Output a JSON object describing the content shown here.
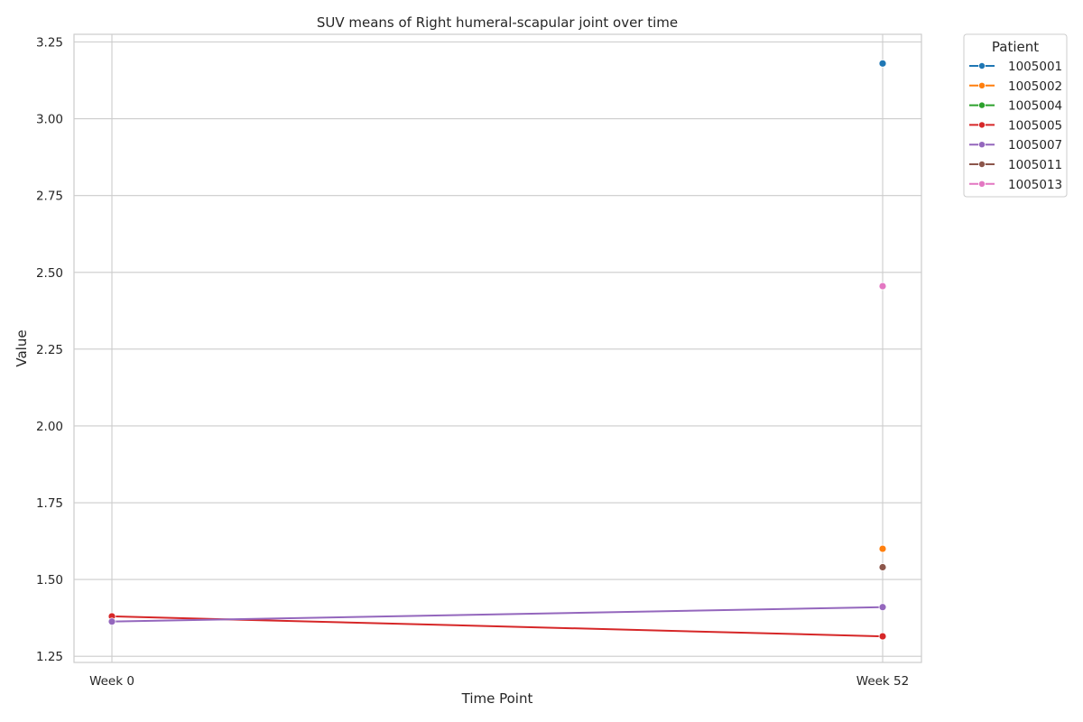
{
  "chart_data": {
    "type": "line",
    "title": "SUV means of Right humeral-scapular joint over time",
    "xlabel": "Time Point",
    "ylabel": "Value",
    "categories": [
      "Week 0",
      "Week 52"
    ],
    "ylim": [
      1.23,
      3.275
    ],
    "yticks": [
      1.25,
      1.5,
      1.75,
      2.0,
      2.25,
      2.5,
      2.75,
      3.0,
      3.25
    ],
    "ytick_labels": [
      "1.25",
      "1.50",
      "1.75",
      "2.00",
      "2.25",
      "2.50",
      "2.75",
      "3.00",
      "3.25"
    ],
    "grid": true,
    "legend": {
      "title": "Patient",
      "placement": "outside-top-right"
    },
    "series": [
      {
        "name": "1005001",
        "color": "#1f77b4",
        "values": [
          null,
          3.18
        ]
      },
      {
        "name": "1005002",
        "color": "#ff7f0e",
        "values": [
          null,
          1.6
        ]
      },
      {
        "name": "1005004",
        "color": "#2ca02c",
        "values": [
          null,
          null
        ]
      },
      {
        "name": "1005005",
        "color": "#d62728",
        "values": [
          1.38,
          1.315
        ]
      },
      {
        "name": "1005007",
        "color": "#9467bd",
        "values": [
          1.363,
          1.41
        ]
      },
      {
        "name": "1005011",
        "color": "#8c564b",
        "values": [
          null,
          1.54
        ]
      },
      {
        "name": "1005013",
        "color": "#e377c2",
        "values": [
          null,
          2.455
        ]
      }
    ]
  }
}
